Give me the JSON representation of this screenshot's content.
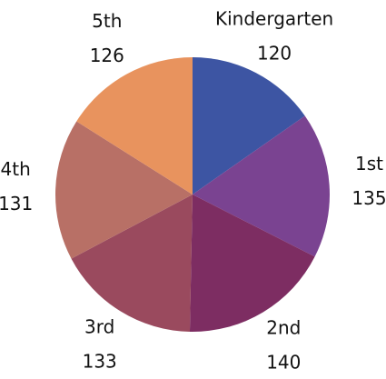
{
  "chart_data": {
    "type": "pie",
    "categories": [
      "Kindergarten",
      "1st",
      "2nd",
      "3rd",
      "4th",
      "5th"
    ],
    "values": [
      120,
      135,
      140,
      133,
      131,
      126
    ],
    "colors": [
      "#3d55a3",
      "#7a4391",
      "#7d2d62",
      "#9a4a5e",
      "#b87066",
      "#e8935e"
    ]
  }
}
